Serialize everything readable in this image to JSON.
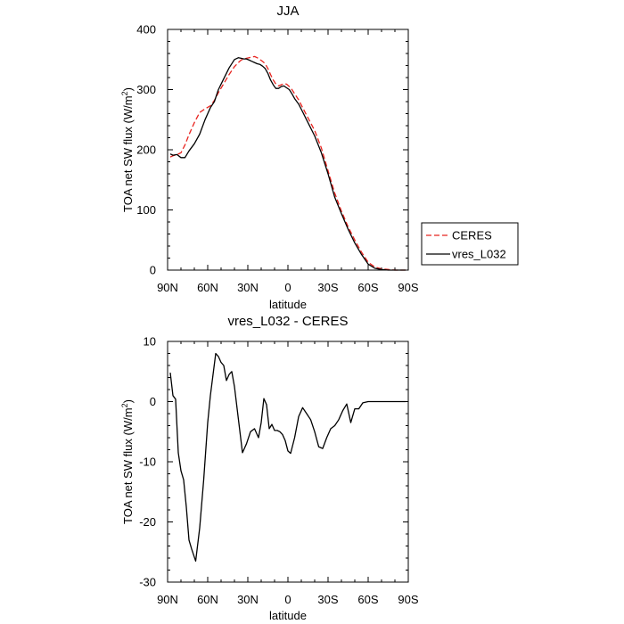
{
  "chart_data": [
    {
      "type": "line",
      "title": "JJA",
      "xlabel": "latitude",
      "ylabel": "TOA net SW flux (W/m",
      "ylabel_sup": "2",
      "ylabel_end": ")",
      "xlim": [
        90,
        -90
      ],
      "ylim": [
        0,
        400
      ],
      "xticks": [
        90,
        60,
        30,
        0,
        -30,
        -60,
        -90
      ],
      "xtick_labels": [
        "90N",
        "60N",
        "30N",
        "0",
        "30S",
        "60S",
        "90S"
      ],
      "yticks": [
        0,
        100,
        200,
        300,
        400
      ],
      "ytick_labels": [
        "0",
        "100",
        "200",
        "300",
        "400"
      ],
      "legend_position": "right, outside plot",
      "series": [
        {
          "name": "CERES",
          "color": "#e8241f",
          "dash": "dashed",
          "x": [
            88,
            86,
            83,
            80,
            77,
            74,
            70,
            66,
            62,
            58,
            55,
            52,
            48,
            44,
            40,
            37,
            35,
            33,
            31,
            29,
            27,
            25,
            23,
            21,
            19,
            17,
            15,
            13,
            11,
            9,
            7,
            5,
            3,
            1,
            -1,
            -3,
            -5,
            -8,
            -11,
            -15,
            -20,
            -25,
            -30,
            -35,
            -40,
            -45,
            -50,
            -55,
            -60,
            -65,
            -70,
            -75,
            -80,
            -85,
            -88
          ],
          "values": [
            188,
            190,
            192,
            195,
            208,
            225,
            245,
            262,
            268,
            273,
            282,
            295,
            310,
            325,
            338,
            345,
            349,
            351,
            352,
            353,
            354,
            355,
            353,
            350,
            347,
            343,
            335,
            325,
            316,
            309,
            306,
            308,
            310,
            309,
            305,
            300,
            293,
            283,
            270,
            253,
            232,
            203,
            165,
            128,
            98,
            72,
            50,
            30,
            13,
            5,
            2,
            1,
            0,
            0,
            0
          ]
        },
        {
          "name": "vres_L032",
          "color": "#000000",
          "dash": "solid",
          "x": [
            88,
            86,
            83,
            80,
            77,
            74,
            70,
            66,
            62,
            58,
            55,
            52,
            48,
            44,
            40,
            37,
            35,
            33,
            31,
            29,
            27,
            25,
            23,
            21,
            19,
            17,
            15,
            13,
            11,
            9,
            7,
            5,
            3,
            1,
            -1,
            -3,
            -5,
            -8,
            -11,
            -15,
            -20,
            -25,
            -30,
            -35,
            -40,
            -45,
            -50,
            -55,
            -60,
            -65,
            -70,
            -75,
            -80,
            -85,
            -88
          ],
          "values": [
            193,
            191,
            192,
            187,
            187,
            198,
            210,
            226,
            250,
            270,
            280,
            300,
            318,
            336,
            350,
            353,
            352,
            351,
            351,
            349,
            347,
            345,
            343,
            342,
            339,
            335,
            327,
            316,
            308,
            302,
            302,
            305,
            306,
            303,
            300,
            293,
            285,
            276,
            263,
            245,
            223,
            195,
            160,
            121,
            94,
            68,
            45,
            26,
            10,
            3,
            1,
            0,
            0,
            0,
            0
          ]
        }
      ]
    },
    {
      "type": "line",
      "title": "vres_L032 - CERES",
      "xlabel": "latitude",
      "ylabel": "TOA net SW flux (W/m",
      "ylabel_sup": "2",
      "ylabel_end": ")",
      "xlim": [
        90,
        -90
      ],
      "ylim": [
        -30,
        10
      ],
      "xticks": [
        90,
        60,
        30,
        0,
        -30,
        -60,
        -90
      ],
      "xtick_labels": [
        "90N",
        "60N",
        "30N",
        "0",
        "30S",
        "60S",
        "90S"
      ],
      "yticks": [
        -30,
        -20,
        -10,
        0,
        10
      ],
      "ytick_labels": [
        "-30",
        "-20",
        "-10",
        "0",
        "10"
      ],
      "series": [
        {
          "color": "#000000",
          "dash": "solid",
          "x": [
            88,
            86,
            84,
            82,
            80,
            78,
            76,
            74,
            72,
            69,
            66,
            63,
            60,
            58,
            56,
            54,
            52,
            50,
            48,
            46,
            44,
            42,
            40,
            37,
            34,
            31,
            28,
            25,
            22,
            20,
            18,
            16,
            14,
            12,
            10,
            8,
            6,
            4,
            2,
            0,
            -2,
            -5,
            -8,
            -11,
            -14,
            -17,
            -20,
            -23,
            -26,
            -29,
            -32,
            -35,
            -38,
            -41,
            -44,
            -47,
            -50,
            -53,
            -56,
            -60,
            -63,
            -65,
            -67,
            -70,
            -72,
            -75,
            -80,
            -85,
            -88
          ],
          "values": [
            4.8,
            1.0,
            0.4,
            -8.5,
            -11.5,
            -13.0,
            -17.5,
            -23.0,
            -24.5,
            -26.5,
            -21.0,
            -13.0,
            -3.5,
            1.0,
            4.5,
            8.0,
            7.5,
            6.5,
            6.0,
            3.5,
            4.5,
            5.0,
            2.5,
            -3.0,
            -8.5,
            -7.0,
            -5.0,
            -4.5,
            -6.0,
            -3.5,
            0.5,
            -0.5,
            -4.5,
            -3.8,
            -4.8,
            -4.8,
            -5.0,
            -5.5,
            -6.5,
            -8.2,
            -8.6,
            -6.0,
            -2.5,
            -1.0,
            -2.0,
            -3.0,
            -5.0,
            -7.5,
            -7.8,
            -6.0,
            -4.5,
            -4.0,
            -3.0,
            -1.5,
            -0.4,
            -3.5,
            -1.2,
            -1.2,
            -0.2,
            0.0,
            0.0,
            0.0,
            0.0,
            0.0,
            0.0,
            0.0,
            0.0,
            0.0,
            0.0
          ]
        }
      ]
    }
  ]
}
